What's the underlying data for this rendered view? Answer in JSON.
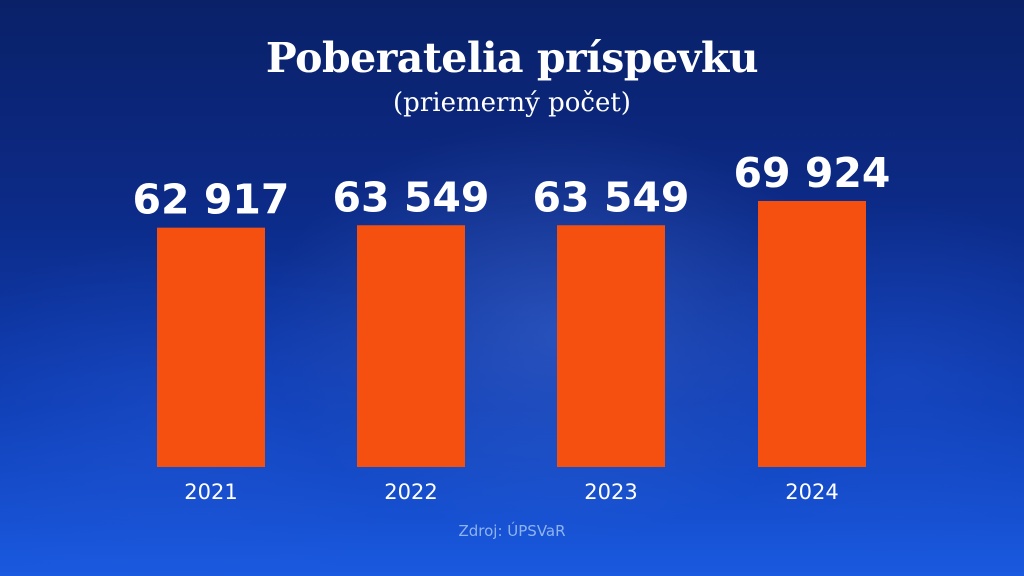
{
  "chart_data": {
    "type": "bar",
    "title": "Poberatelia príspevku",
    "subtitle": "(priemerný počet)",
    "categories": [
      "2021",
      "2022",
      "2023",
      "2024"
    ],
    "values": [
      62917,
      63549,
      63549,
      69924
    ],
    "value_labels": [
      "62 917",
      "63 549",
      "63 549",
      "69 924"
    ],
    "bar_color": "#f5500f",
    "grid": false,
    "legend": "none"
  },
  "source": "Zdroj: ÚPSVaR"
}
